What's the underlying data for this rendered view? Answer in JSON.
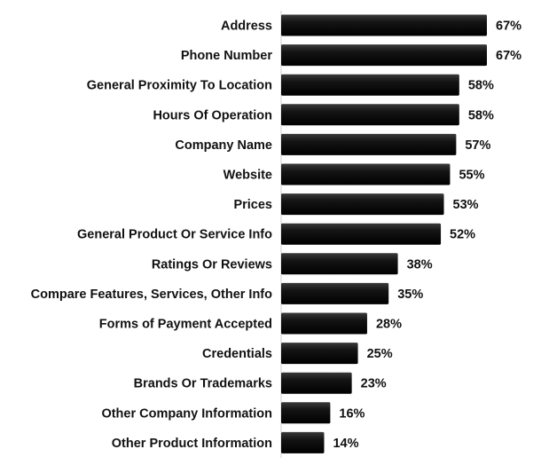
{
  "chart_data": {
    "type": "bar",
    "orientation": "horizontal",
    "categories": [
      "Address",
      "Phone Number",
      "General Proximity To Location",
      "Hours Of Operation",
      "Company Name",
      "Website",
      "Prices",
      "General Product Or Service Info",
      "Ratings Or Reviews",
      "Compare Features, Services, Other Info",
      "Forms of Payment Accepted",
      "Credentials",
      "Brands Or Trademarks",
      "Other Company Information",
      "Other Product Information"
    ],
    "values": [
      67,
      67,
      58,
      58,
      57,
      55,
      53,
      52,
      38,
      35,
      28,
      25,
      23,
      16,
      14
    ],
    "value_labels": [
      "67%",
      "67%",
      "58%",
      "58%",
      "57%",
      "55%",
      "53%",
      "52%",
      "38%",
      "35%",
      "28%",
      "25%",
      "23%",
      "16%",
      "14%"
    ],
    "xlim": [
      0,
      67
    ],
    "grid": false,
    "legend": "none",
    "bar_color": "#0b0b0b"
  }
}
